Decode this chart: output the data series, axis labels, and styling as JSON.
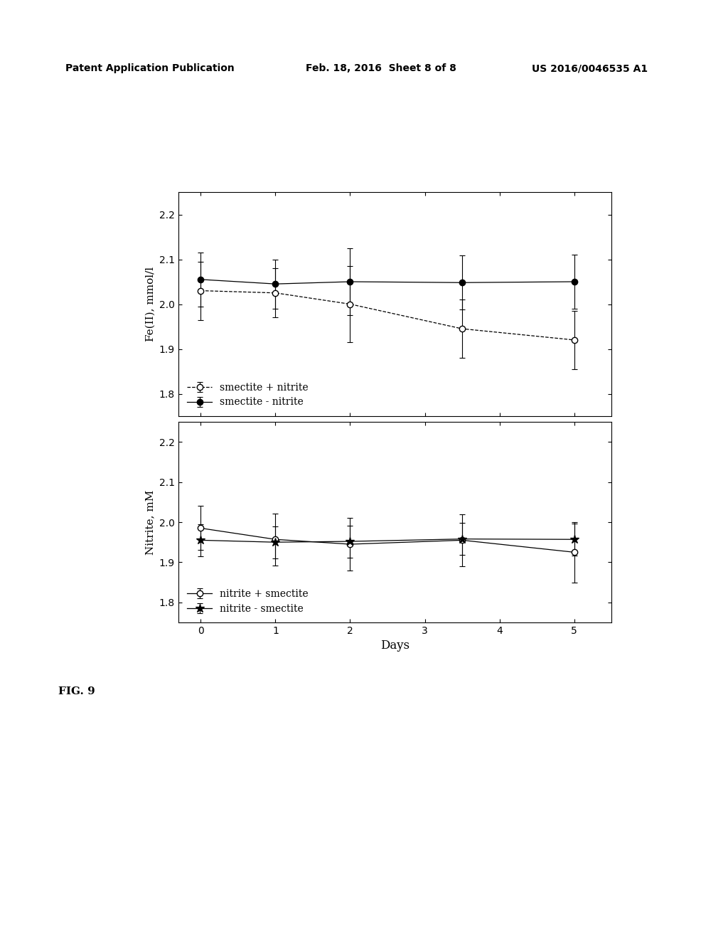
{
  "top_panel": {
    "ylabel": "Fe(II), mmol/l",
    "ylim": [
      1.75,
      2.25
    ],
    "yticks": [
      1.8,
      1.9,
      2.0,
      2.1,
      2.2
    ],
    "series1": {
      "label": "smectite + nitrite",
      "x": [
        0,
        1,
        2,
        3.5,
        5
      ],
      "y": [
        2.03,
        2.025,
        2.0,
        1.945,
        1.92
      ],
      "yerr": [
        0.065,
        0.055,
        0.085,
        0.065,
        0.065
      ],
      "marker": "o",
      "fillstyle": "none",
      "color": "black",
      "linestyle": "--"
    },
    "series2": {
      "label": "smectite - nitrite",
      "x": [
        0,
        1,
        2,
        3.5,
        5
      ],
      "y": [
        2.055,
        2.045,
        2.05,
        2.048,
        2.05
      ],
      "yerr": [
        0.06,
        0.055,
        0.075,
        0.06,
        0.06
      ],
      "marker": "o",
      "fillstyle": "full",
      "color": "black",
      "linestyle": "-"
    }
  },
  "bottom_panel": {
    "ylabel": "Nitrite, mM",
    "xlabel": "Days",
    "ylim": [
      1.75,
      2.25
    ],
    "yticks": [
      1.8,
      1.9,
      2.0,
      2.1,
      2.2
    ],
    "series1": {
      "label": "nitrite + smectite",
      "x": [
        0,
        1,
        2,
        3.5,
        5
      ],
      "y": [
        1.985,
        1.957,
        1.945,
        1.955,
        1.925
      ],
      "yerr": [
        0.055,
        0.065,
        0.065,
        0.065,
        0.075
      ],
      "marker": "o",
      "fillstyle": "none",
      "color": "black",
      "linestyle": "-"
    },
    "series2": {
      "label": "nitrite - smectite",
      "x": [
        0,
        1,
        2,
        3.5,
        5
      ],
      "y": [
        1.955,
        1.95,
        1.952,
        1.958,
        1.957
      ],
      "yerr": [
        0.04,
        0.04,
        0.04,
        0.04,
        0.04
      ],
      "marker": "*",
      "fillstyle": "full",
      "color": "black",
      "linestyle": "-"
    }
  },
  "xticks": [
    0,
    1,
    2,
    3,
    4,
    5
  ],
  "xlim": [
    -0.3,
    5.5
  ],
  "background_color": "#ffffff",
  "header_left": "Patent Application Publication",
  "header_mid": "Feb. 18, 2016  Sheet 8 of 8",
  "header_right": "US 2016/0046535 A1",
  "fig_label": "FIG. 9"
}
